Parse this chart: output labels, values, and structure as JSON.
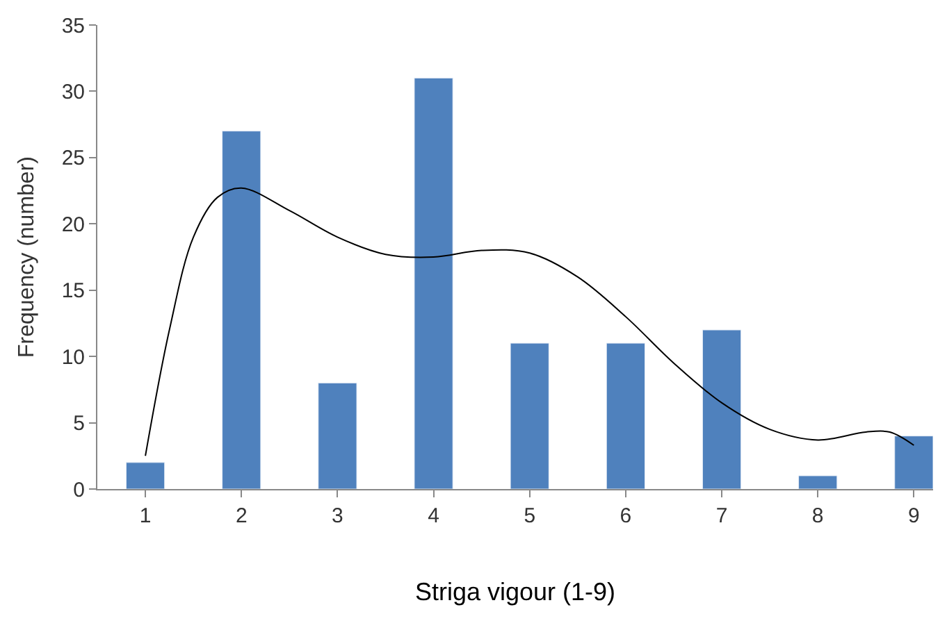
{
  "chart_data": {
    "type": "bar",
    "xlabel": "Striga vigour (1-9)",
    "ylabel": "Frequency (number)",
    "x": [
      1,
      2,
      3,
      4,
      5,
      6,
      7,
      8,
      9
    ],
    "series": [
      {
        "color": "#4f81bd",
        "values": [
          2,
          27,
          8,
          31,
          11,
          11,
          12,
          1,
          4
        ]
      },
      {
        "type": "line",
        "color": "#000000",
        "x": [
          1,
          1.25,
          1.5,
          1.75,
          2,
          2.5,
          3,
          3.5,
          4,
          4.5,
          5,
          5.5,
          6,
          6.5,
          7,
          7.5,
          8,
          8.5,
          8.75,
          9
        ],
        "values": [
          2.5,
          12,
          19,
          22,
          22.7,
          21,
          19,
          17.7,
          17.5,
          18,
          17.8,
          16,
          13,
          9.5,
          6.5,
          4.5,
          3.7,
          4.3,
          4.3,
          3.3
        ]
      }
    ],
    "xlim": [
      0.5,
      9.2
    ],
    "xticks": [
      1,
      2,
      3,
      4,
      5,
      6,
      7,
      8,
      9
    ],
    "ylim": [
      0,
      35
    ],
    "yticks": [
      0,
      5,
      10,
      15,
      20,
      25,
      30,
      35
    ]
  }
}
